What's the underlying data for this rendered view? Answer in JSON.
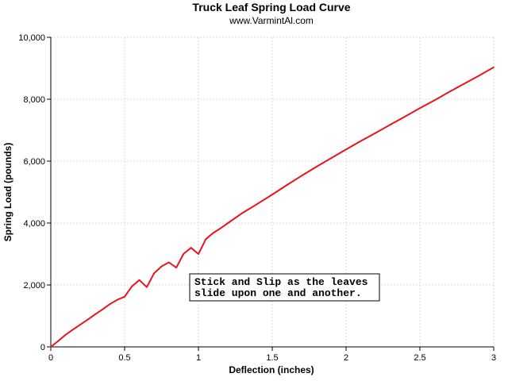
{
  "chart_data": {
    "type": "line",
    "title": "Truck Leaf Spring Load Curve",
    "subtitle": "www.VarmintAl.com",
    "xlabel": "Deflection (inches)",
    "ylabel": "Spring Load (pounds)",
    "xlim": [
      0,
      3
    ],
    "ylim": [
      0,
      10000
    ],
    "x_ticks": [
      0,
      0.5,
      1,
      1.5,
      2,
      2.5,
      3
    ],
    "x_tick_labels": [
      "0",
      "0.5",
      "1",
      "1.5",
      "2",
      "2.5",
      "3"
    ],
    "y_ticks": [
      0,
      2000,
      4000,
      6000,
      8000,
      10000
    ],
    "y_tick_labels": [
      "0",
      "2,000",
      "4,000",
      "6,000",
      "8,000",
      "10,000"
    ],
    "grid": true,
    "colors": {
      "line": "#e8141e",
      "grid": "#d8d8d8",
      "axis": "#000000"
    },
    "series": [
      {
        "x": [
          0,
          0.05,
          0.1,
          0.15,
          0.2,
          0.25,
          0.3,
          0.35,
          0.4,
          0.45,
          0.5,
          0.55,
          0.6,
          0.65,
          0.7,
          0.75,
          0.8,
          0.85,
          0.9,
          0.95,
          1.0,
          1.05,
          1.1,
          1.15,
          1.2,
          1.3,
          1.4,
          1.5,
          1.6,
          1.7,
          1.8,
          1.9,
          2.0,
          2.1,
          2.2,
          2.3,
          2.4,
          2.5,
          2.6,
          2.7,
          2.8,
          2.9,
          3.0
        ],
        "values": [
          0,
          190,
          390,
          560,
          720,
          880,
          1050,
          1210,
          1380,
          1520,
          1620,
          1960,
          2160,
          1930,
          2380,
          2600,
          2730,
          2560,
          3010,
          3200,
          3000,
          3480,
          3680,
          3830,
          4000,
          4330,
          4620,
          4920,
          5230,
          5530,
          5820,
          6100,
          6380,
          6650,
          6910,
          7180,
          7440,
          7710,
          7970,
          8240,
          8500,
          8760,
          9030
        ]
      }
    ],
    "annotation": {
      "lines": [
        "Stick and Slip as the leaves",
        "slide upon one and another."
      ]
    }
  }
}
